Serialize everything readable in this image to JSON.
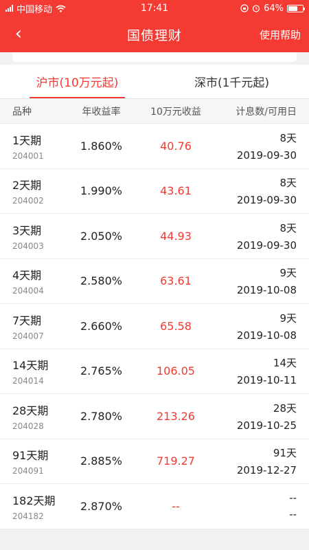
{
  "status_bar": {
    "carrier": "中国移动",
    "time": "17:41",
    "battery": "64%",
    "battery_level": 0.64,
    "icons": [
      "signal-icon",
      "wifi-icon",
      "lock-rotation-icon",
      "alarm-icon",
      "battery-icon"
    ]
  },
  "nav": {
    "back_icon": "‹",
    "title": "国债理财",
    "help": "使用帮助"
  },
  "tabs": [
    {
      "label": "沪市(10万元起)",
      "active": true
    },
    {
      "label": "深市(1千元起)",
      "active": false
    }
  ],
  "table": {
    "headers": [
      "品种",
      "年收益率",
      "10万元收益",
      "计息数/可用日"
    ],
    "rows": [
      {
        "name": "1天期",
        "code": "204001",
        "rate": "1.860%",
        "earn": "40.76",
        "days": "8天",
        "date": "2019-09-30"
      },
      {
        "name": "2天期",
        "code": "204002",
        "rate": "1.990%",
        "earn": "43.61",
        "days": "8天",
        "date": "2019-09-30"
      },
      {
        "name": "3天期",
        "code": "204003",
        "rate": "2.050%",
        "earn": "44.93",
        "days": "8天",
        "date": "2019-09-30"
      },
      {
        "name": "4天期",
        "code": "204004",
        "rate": "2.580%",
        "earn": "63.61",
        "days": "9天",
        "date": "2019-10-08"
      },
      {
        "name": "7天期",
        "code": "204007",
        "rate": "2.660%",
        "earn": "65.58",
        "days": "9天",
        "date": "2019-10-08"
      },
      {
        "name": "14天期",
        "code": "204014",
        "rate": "2.765%",
        "earn": "106.05",
        "days": "14天",
        "date": "2019-10-11"
      },
      {
        "name": "28天期",
        "code": "204028",
        "rate": "2.780%",
        "earn": "213.26",
        "days": "28天",
        "date": "2019-10-25"
      },
      {
        "name": "91天期",
        "code": "204091",
        "rate": "2.885%",
        "earn": "719.27",
        "days": "91天",
        "date": "2019-12-27"
      },
      {
        "name": "182天期",
        "code": "204182",
        "rate": "2.870%",
        "earn": "--",
        "days": "--",
        "date": "--"
      }
    ]
  },
  "colors": {
    "brand": "#f43b33",
    "earn": "#f03a2f"
  }
}
